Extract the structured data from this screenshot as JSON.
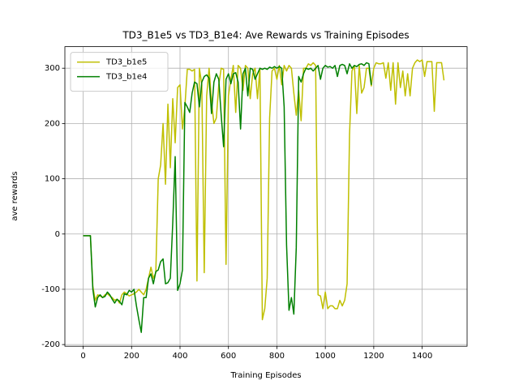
{
  "chart_data": {
    "type": "line",
    "title": "TD3_B1e5 vs TD3_B1e4: Ave Rewards vs Training Episodes",
    "x_label": "Training Episodes",
    "y_label": "ave rewards",
    "xlim": [
      -75.5,
      1585.5
    ],
    "ylim": [
      -203,
      339
    ],
    "xticks": [
      0,
      200,
      400,
      600,
      800,
      1000,
      1200,
      1400
    ],
    "yticks": [
      -200,
      -100,
      0,
      100,
      200,
      300
    ],
    "grid": true,
    "legend": "upper left",
    "series": [
      {
        "name": "TD3_b1e5",
        "color": "#bfbf00",
        "x": [
          0,
          10,
          20,
          30,
          40,
          50,
          60,
          70,
          80,
          90,
          100,
          110,
          120,
          130,
          140,
          150,
          160,
          170,
          180,
          190,
          200,
          210,
          220,
          230,
          240,
          250,
          260,
          270,
          280,
          290,
          300,
          310,
          320,
          330,
          340,
          350,
          360,
          370,
          380,
          390,
          400,
          410,
          420,
          430,
          440,
          450,
          460,
          470,
          480,
          490,
          500,
          510,
          520,
          530,
          540,
          550,
          560,
          570,
          580,
          590,
          600,
          610,
          620,
          630,
          640,
          650,
          660,
          670,
          680,
          690,
          700,
          710,
          720,
          730,
          740,
          750,
          760,
          770,
          780,
          790,
          800,
          810,
          820,
          830,
          840,
          850,
          860,
          870,
          880,
          890,
          900,
          910,
          920,
          930,
          940,
          950,
          960,
          970,
          980,
          990,
          1000,
          1010,
          1020,
          1030,
          1040,
          1050,
          1060,
          1070,
          1080,
          1090,
          1100,
          1110,
          1120,
          1130,
          1140,
          1150,
          1160,
          1170,
          1180,
          1190,
          1200,
          1210,
          1220,
          1230,
          1240,
          1250,
          1260,
          1270,
          1280,
          1290,
          1300,
          1310,
          1320,
          1330,
          1340,
          1350,
          1360,
          1370,
          1380,
          1390,
          1400,
          1410,
          1420,
          1430,
          1440,
          1450,
          1460,
          1470,
          1480,
          1490
        ],
        "values": [
          -3,
          -3,
          -3,
          -3,
          -95,
          -120,
          -110,
          -112,
          -115,
          -110,
          -108,
          -112,
          -115,
          -120,
          -118,
          -125,
          -110,
          -105,
          -108,
          -112,
          -110,
          -108,
          -105,
          -100,
          -105,
          -110,
          -100,
          -80,
          -60,
          -80,
          -70,
          100,
          125,
          200,
          90,
          235,
          120,
          245,
          165,
          265,
          270,
          190,
          230,
          298,
          298,
          295,
          298,
          -85,
          300,
          270,
          -70,
          250,
          300,
          240,
          200,
          210,
          270,
          300,
          298,
          -55,
          250,
          280,
          305,
          220,
          305,
          300,
          260,
          305,
          300,
          245,
          290,
          300,
          245,
          300,
          -155,
          -135,
          -80,
          210,
          295,
          300,
          280,
          305,
          270,
          305,
          295,
          305,
          300,
          255,
          215,
          260,
          205,
          300,
          300,
          308,
          305,
          310,
          305,
          -110,
          -112,
          -135,
          -105,
          -135,
          -130,
          -130,
          -135,
          -135,
          -120,
          -130,
          -120,
          -90,
          180,
          295,
          305,
          218,
          305,
          255,
          265,
          300,
          300,
          268,
          300,
          310,
          308,
          308,
          310,
          282,
          310,
          260,
          310,
          235,
          310,
          265,
          295,
          250,
          290,
          250,
          300,
          310,
          315,
          312,
          315,
          285,
          312,
          312,
          312,
          222,
          310,
          310,
          310,
          278
        ]
      },
      {
        "name": "TD3_b1e4",
        "color": "#008000",
        "x": [
          0,
          10,
          20,
          30,
          40,
          50,
          60,
          70,
          80,
          90,
          100,
          110,
          120,
          130,
          140,
          150,
          160,
          170,
          180,
          190,
          200,
          210,
          220,
          230,
          240,
          250,
          260,
          270,
          280,
          290,
          300,
          310,
          320,
          330,
          340,
          350,
          360,
          370,
          380,
          390,
          400,
          410,
          420,
          430,
          440,
          450,
          460,
          470,
          480,
          490,
          500,
          510,
          520,
          530,
          540,
          550,
          560,
          570,
          580,
          590,
          600,
          610,
          620,
          630,
          640,
          650,
          660,
          670,
          680,
          690,
          700,
          710,
          720,
          730,
          740,
          750,
          760,
          770,
          780,
          790,
          800,
          810,
          820,
          830,
          840,
          850,
          860,
          870,
          880,
          890,
          900,
          910,
          920,
          930,
          940,
          950,
          960,
          970,
          980,
          990,
          1000,
          1010,
          1020,
          1030,
          1040,
          1050,
          1060,
          1070,
          1080,
          1090,
          1100,
          1110,
          1120,
          1130,
          1140,
          1150,
          1160,
          1170,
          1180,
          1190
        ],
        "values": [
          -3,
          -3,
          -3,
          -3,
          -100,
          -132,
          -115,
          -110,
          -115,
          -113,
          -105,
          -110,
          -118,
          -125,
          -118,
          -122,
          -128,
          -108,
          -110,
          -102,
          -105,
          -100,
          -130,
          -155,
          -178,
          -115,
          -115,
          -80,
          -72,
          -90,
          -68,
          -65,
          -50,
          -45,
          -90,
          -88,
          -80,
          20,
          140,
          -102,
          -90,
          -65,
          238,
          230,
          220,
          255,
          275,
          272,
          230,
          275,
          285,
          288,
          282,
          218,
          275,
          290,
          280,
          215,
          158,
          280,
          290,
          272,
          290,
          292,
          275,
          190,
          290,
          300,
          250,
          300,
          298,
          280,
          290,
          300,
          298,
          300,
          298,
          302,
          300,
          303,
          300,
          303,
          300,
          230,
          -20,
          -138,
          -115,
          -145,
          -25,
          285,
          275,
          290,
          300,
          298,
          300,
          295,
          300,
          305,
          280,
          300,
          305,
          302,
          303,
          300,
          305,
          285,
          305,
          307,
          305,
          290,
          308,
          300,
          305,
          303,
          307,
          308,
          305,
          310,
          308,
          270
        ]
      }
    ]
  }
}
